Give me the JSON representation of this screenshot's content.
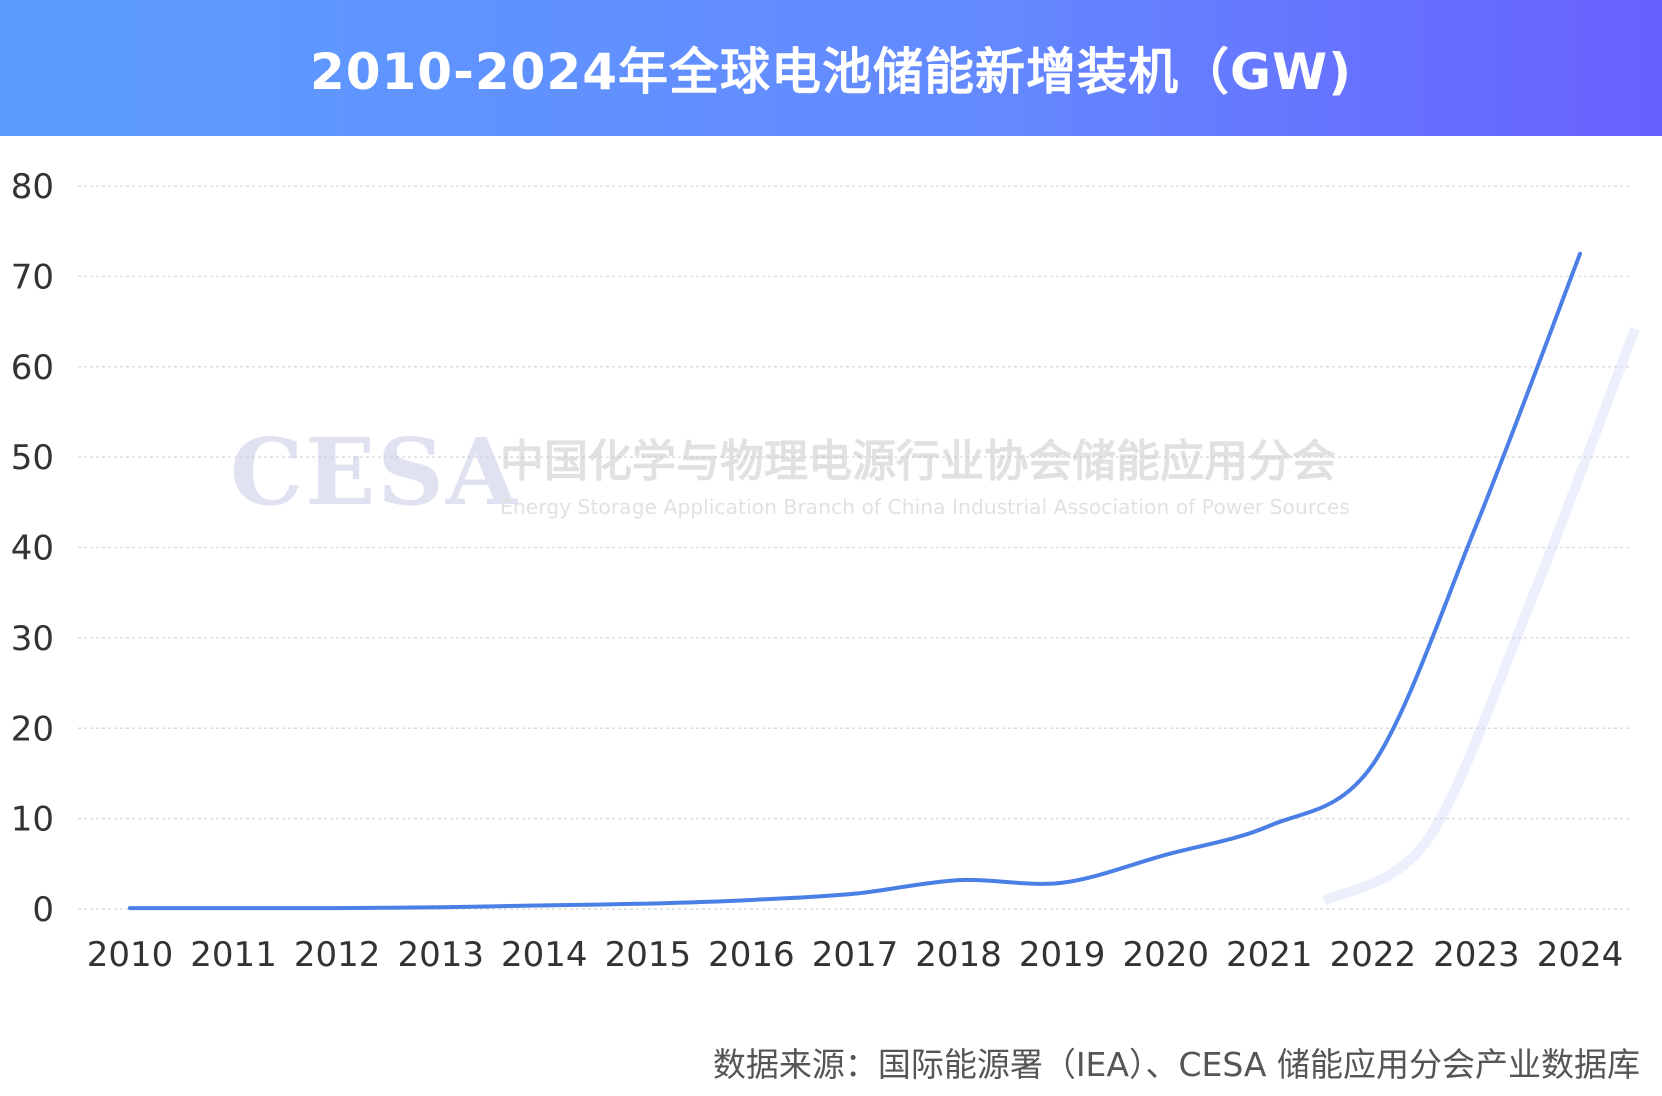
{
  "header": {
    "title": "2010-2024年全球电池储能新增装机（GW)"
  },
  "watermark": {
    "logo": "CESA",
    "name_cn": "中国化学与物理电源行业协会储能应用分会",
    "name_en": "Energy Storage Application Branch of China Industrial Association of Power Sources"
  },
  "source": "数据来源：国际能源署（IEA）、CESA 储能应用分会产业数据库",
  "colors": {
    "line": "#4a7fe6",
    "grid": "#dddddd",
    "header_start": "#5c9cff",
    "header_end": "#6860ff"
  },
  "chart_data": {
    "type": "line",
    "title": "2010-2024年全球电池储能新增装机（GW)",
    "xlabel": "",
    "ylabel": "",
    "categories": [
      "2010",
      "2011",
      "2012",
      "2013",
      "2014",
      "2015",
      "2016",
      "2017",
      "2018",
      "2019",
      "2020",
      "2021",
      "2022",
      "2023",
      "2024"
    ],
    "series": [
      {
        "values": [
          0.1,
          0.1,
          0.1,
          0.2,
          0.4,
          0.6,
          1.0,
          1.7,
          3.2,
          2.9,
          6.0,
          9.2,
          16.0,
          42.5,
          72.5
        ]
      }
    ],
    "ylim": [
      0,
      80
    ],
    "yticks": [
      0,
      10,
      20,
      30,
      40,
      50,
      60,
      70,
      80
    ],
    "grid": true,
    "legend": "none"
  }
}
